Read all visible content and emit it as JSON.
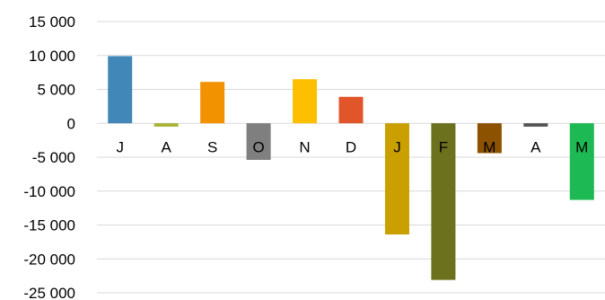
{
  "chart_data": {
    "type": "bar",
    "title": "",
    "xlabel": "",
    "ylabel": "",
    "categories": [
      "J",
      "A",
      "S",
      "O",
      "N",
      "D",
      "J",
      "F",
      "M",
      "A",
      "M"
    ],
    "values": [
      9900,
      -500,
      6100,
      -5400,
      6500,
      3900,
      -16400,
      -23100,
      -4400,
      -500,
      -11300
    ],
    "colors": [
      "#4187b8",
      "#a9b435",
      "#f39200",
      "#7f7f7f",
      "#fdc000",
      "#e0562a",
      "#c9a000",
      "#6b711c",
      "#8c5200",
      "#555555",
      "#1db954"
    ],
    "ylim": [
      -25000,
      15000
    ],
    "yticks": [
      15000,
      10000,
      5000,
      0,
      -5000,
      -10000,
      -15000,
      -20000,
      -25000
    ],
    "ytick_labels": [
      "15 000",
      "10 000",
      "5 000",
      "0",
      "-5 000",
      "-10 000",
      "-15 000",
      "-20 000",
      "-25 000"
    ],
    "grid": true,
    "legend": "none"
  }
}
